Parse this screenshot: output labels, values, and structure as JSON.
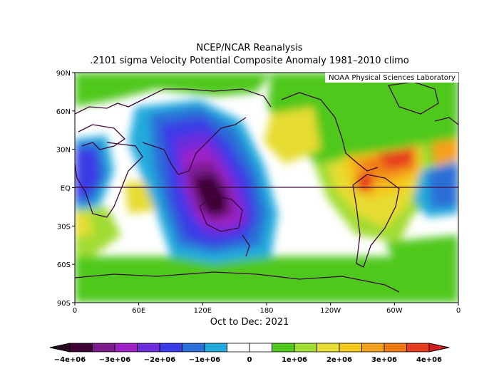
{
  "title": "NCEP/NCAR Reanalysis",
  "subtitle": ".2101 sigma Velocity Potential  Composite Anomaly 1981–2010 climo",
  "credit": "NOAA Physical Sciences Laboratory",
  "period": "Oct to Dec: 2021",
  "lat_labels": [
    "90N",
    "60N",
    "30N",
    "EQ",
    "30S",
    "60S",
    "90S"
  ],
  "lon_labels": [
    "0",
    "60E",
    "120E",
    "180",
    "120W",
    "60W",
    "0"
  ],
  "colorbar": {
    "labels": [
      "−4e+06",
      "−3e+06",
      "−2e+06",
      "−1e+06",
      "0",
      "1e+06",
      "2e+06",
      "3e+06",
      "4e+06"
    ],
    "colors": [
      "#3c0032",
      "#7a1a8c",
      "#a020c8",
      "#6e2cdc",
      "#3a3ae6",
      "#2a6ed6",
      "#22aadc",
      "#ffffff",
      "#ffffff",
      "#50c81e",
      "#a0dc32",
      "#e6dc32",
      "#f5c81e",
      "#f5a01e",
      "#f07814",
      "#e63c1e"
    ],
    "left_arrow_color": "#2a0a1e",
    "right_arrow_color": "#d21e1e"
  }
}
